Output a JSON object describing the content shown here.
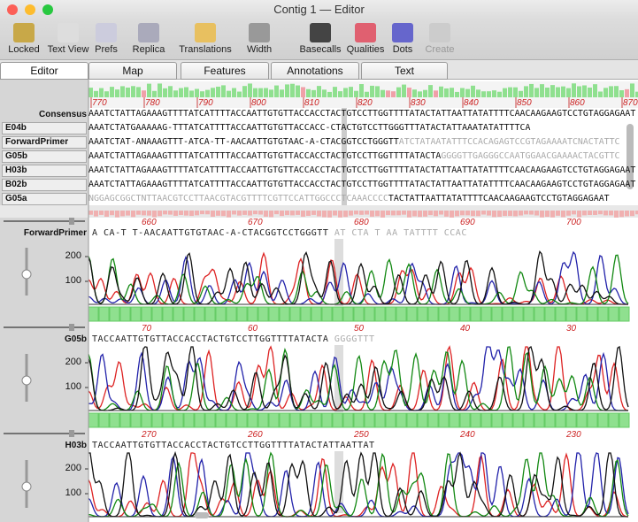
{
  "window": {
    "title": "Contig 1 — Editor"
  },
  "toolbar": [
    "Locked",
    "Text View",
    "Prefs",
    "Replica",
    "Translations",
    "Width",
    "Basecalls",
    "Qualities",
    "Dots",
    "Create"
  ],
  "tabs": [
    "Editor",
    "Map",
    "Features",
    "Annotations",
    "Text"
  ],
  "ruler": [
    "770",
    "780",
    "790",
    "800",
    "810",
    "820",
    "830",
    "840",
    "850",
    "860",
    "870"
  ],
  "consensus": {
    "label": "Consensus",
    "sequence": "AAATCTATTAGAAAGTTTTATCATTTTACCAATTGTGTTACCACCTACTGTCCTTGGTTTTATACTATTAATTATATTTTCAACAAGAAGTCCTGTAGGAGAAT"
  },
  "reads": [
    {
      "name": "E04b",
      "segments": [
        {
          "text": "AAATCTATGAAAAAG-TTTATCATTTTACCAATTGTGTTACCACC-CTACTGTCCTTGGGTTTATACTATTAAATATATTTTCA",
          "trimmed": false
        }
      ]
    },
    {
      "name": "ForwardPrimer",
      "segments": [
        {
          "text": "AAATCTAT-ANAAAGTTT-ATCA-TT-AACAATTGTGTAAC-A-CTACGGTCCTGGGTT",
          "trimmed": false
        },
        {
          "text": "ATCTATAATATTTCCACAGAGTCCGTAGAAAATCNACTATTC",
          "trimmed": true
        }
      ]
    },
    {
      "name": "G05b",
      "segments": [
        {
          "text": "AAATCTATTAGAAAGTTTTATCATTTTACCAATTGTGTTACCACCTACTGTCCTTGGTTTTATACTA",
          "trimmed": false
        },
        {
          "text": "GGGGTTGAGGGCCAATGGAACGAAAACTACGTTC",
          "trimmed": true
        }
      ]
    },
    {
      "name": "H03b",
      "segments": [
        {
          "text": "AAATCTATTAGAAAGTTTTATCATTTTACCAATTGTGTTACCACCTACTGTCCTTGGTTTTATACTATTAATTATATTTTCAACAAGAAGTCCTGTAGGAGAAT",
          "trimmed": false
        }
      ]
    },
    {
      "name": "B02b",
      "segments": [
        {
          "text": "AAATCTATTAGAAAGTTTTATCATTTTACCAATTGTGTTACCACCTACTGTCCTTGGTTTTATACTATTAATTATATTTTCAACAAGAAGTCCTGTAGGAGAAT",
          "trimmed": false
        }
      ]
    },
    {
      "name": "G05a",
      "segments": [
        {
          "text": "NGGAGCGGCTNTTAACGTCCTTAACGTACGTTTTCGTTCCATTGGCCCTCAAACCCC",
          "trimmed": true
        },
        {
          "text": "TACTATTAATTATATTTTCAACAAGAAGTCCTGTAGGAGAAT",
          "trimmed": false
        }
      ]
    }
  ],
  "panels": [
    {
      "name": "ForwardPrimer",
      "ruler": [
        "660",
        "670",
        "680",
        "690",
        "700"
      ],
      "bases": "A CA-T T-AACAATTGTGTAAC-A-CTACGGTCCTGGGTT",
      "trimmed_bases": "AT CTA T AA TATTTT CCAC",
      "yticks": [
        "200",
        "100"
      ]
    },
    {
      "name": "G05b",
      "ruler": [
        "70",
        "60",
        "50",
        "40",
        "30"
      ],
      "bases": "TACCAATTGTGTTACCACCTACTGTCCTTGGTTTTATACTA",
      "trimmed_bases": "GGGGTTT",
      "yticks": [
        "200",
        "100"
      ]
    },
    {
      "name": "H03b",
      "ruler": [
        "270",
        "260",
        "250",
        "240",
        "230"
      ],
      "bases": "TACCAATTGTGTTACCACCTACTGTCCTTGGTTTTATACTATTAATTAT",
      "trimmed_bases": "",
      "yticks": [
        "200",
        "100"
      ]
    }
  ]
}
